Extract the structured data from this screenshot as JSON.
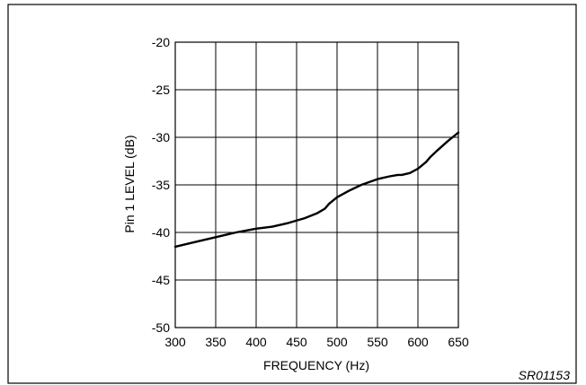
{
  "figure_id": "SR01153",
  "chart_data": {
    "type": "line",
    "title": "",
    "xlabel": "FREQUENCY (Hz)",
    "ylabel": "Pin 1 LEVEL (dB)",
    "xlim": [
      300,
      650
    ],
    "ylim": [
      -50,
      -20
    ],
    "xticks": [
      300,
      350,
      400,
      450,
      500,
      550,
      600,
      650
    ],
    "yticks": [
      -50,
      -45,
      -40,
      -35,
      -30,
      -25,
      -20
    ],
    "xtick_labels": [
      "300",
      "350",
      "400",
      "450",
      "500",
      "550",
      "600",
      "650"
    ],
    "ytick_labels": [
      "-50",
      "-45",
      "-40",
      "-35",
      "-30",
      "-25",
      "-20"
    ],
    "grid": true,
    "legend": "none",
    "series": [
      {
        "color": "#000000",
        "x": [
          300,
          325,
          350,
          375,
          400,
          420,
          440,
          460,
          475,
          485,
          490,
          500,
          515,
          530,
          550,
          565,
          575,
          580,
          590,
          600,
          605,
          610,
          615,
          625,
          637,
          650
        ],
        "y": [
          -41.5,
          -41.0,
          -40.5,
          -40.0,
          -39.6,
          -39.4,
          -39.0,
          -38.5,
          -38.0,
          -37.5,
          -37.0,
          -36.3,
          -35.6,
          -35.0,
          -34.4,
          -34.1,
          -33.95,
          -33.95,
          -33.75,
          -33.3,
          -32.95,
          -32.6,
          -32.1,
          -31.3,
          -30.4,
          -29.5
        ]
      }
    ]
  }
}
